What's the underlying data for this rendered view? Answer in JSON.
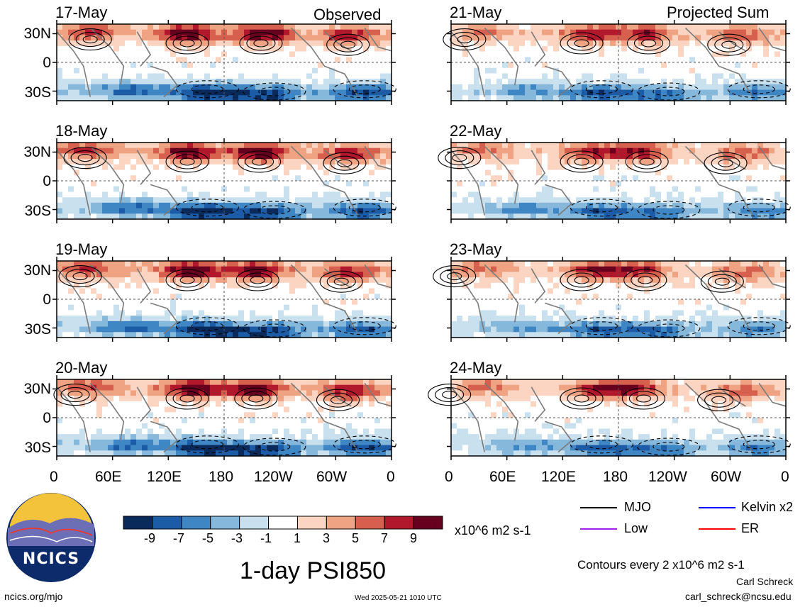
{
  "figure": {
    "title": "1-day PSI850",
    "observed_label": "Observed",
    "projected_label": "Projected Sum",
    "units": "x10^6 m2 s-1",
    "contours_note": "Contours every 2 x10^6 m2 s-1",
    "author": "Carl Schreck",
    "email": "carl_schreck@ncsu.edu",
    "site": "ncics.org/mjo",
    "timestamp": "Wed 2025-05-21 1010 UTC",
    "logo_text": "NCICS"
  },
  "chart_data": {
    "type": "heatmap",
    "variable": "PSI850",
    "panels_observed": [
      {
        "date": "17-May"
      },
      {
        "date": "18-May"
      },
      {
        "date": "19-May"
      },
      {
        "date": "20-May"
      }
    ],
    "panels_projected": [
      {
        "date": "21-May"
      },
      {
        "date": "22-May"
      },
      {
        "date": "23-May"
      },
      {
        "date": "24-May"
      }
    ],
    "lat_ticks": [
      "30N",
      "0",
      "30S"
    ],
    "lon_ticks": [
      "0",
      "60E",
      "120E",
      "180",
      "120W",
      "60W",
      "0"
    ],
    "colorbar": {
      "ticks": [
        "-9",
        "-7",
        "-5",
        "-3",
        "-1",
        "1",
        "3",
        "5",
        "7",
        "9"
      ],
      "colors": [
        "#0b2a5c",
        "#1c5ba6",
        "#3f86c4",
        "#86b8dc",
        "#c9e0ef",
        "#ffffff",
        "#fbd5c2",
        "#f0a383",
        "#d6604d",
        "#b2182b",
        "#67001f"
      ]
    },
    "legend": [
      {
        "name": "MJO",
        "color": "#000000"
      },
      {
        "name": "Kelvin x2",
        "color": "#0000ff"
      },
      {
        "name": "Low",
        "color": "#a020f0"
      },
      {
        "name": "ER",
        "color": "#ff0000"
      }
    ]
  }
}
